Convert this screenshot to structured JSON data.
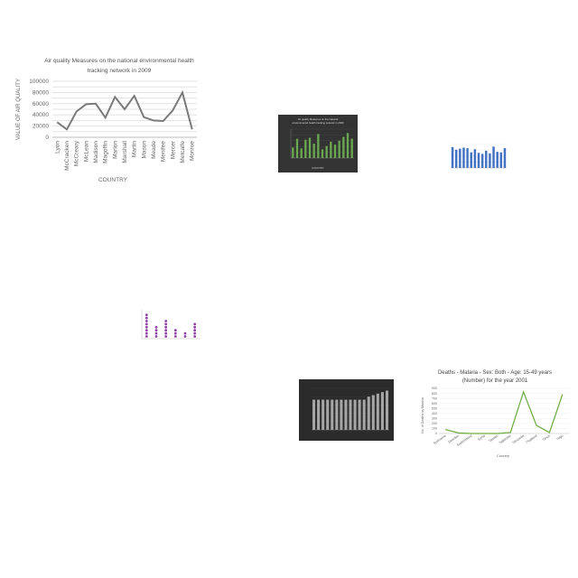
{
  "chart_data": [
    {
      "type": "line",
      "title_lines": [
        "Air quality Measures on the national environmental health",
        "tracking network in 2009"
      ],
      "xlabel": "COUNTRY",
      "ylabel": "VALUE OF AIR QUALITY",
      "ylim": [
        0,
        100000
      ],
      "yticks": [
        "100000",
        "80000",
        "60000",
        "40000",
        "20000",
        "0"
      ],
      "categories": [
        "Lyon",
        "McCracken",
        "McCreary",
        "McLean",
        "Madison",
        "Magoffin",
        "Marion",
        "Marshall",
        "Martin",
        "Mason",
        "Meade",
        "Menifee",
        "Mercer",
        "Metcalfe",
        "Monroe"
      ],
      "values": [
        27000,
        14000,
        46000,
        59000,
        60000,
        35000,
        72000,
        50000,
        74000,
        36000,
        30000,
        29000,
        48000,
        80000,
        14000
      ],
      "colors": {
        "line": "#7a7a7a"
      }
    },
    {
      "type": "bar",
      "title_lines": [
        "Air quality Measures on the national",
        "environmental health tracking network in 2009"
      ],
      "xlabel": "COUNTRY",
      "values": [
        22000,
        40000,
        20000,
        38000,
        42000,
        30000,
        50000,
        18000,
        25000,
        34000,
        28000,
        36000,
        44000,
        52000,
        40000
      ],
      "colors": {
        "background": "#333333",
        "bar": "#6aa84f"
      }
    },
    {
      "type": "bar",
      "values": [
        80,
        70,
        74,
        78,
        76,
        60,
        72,
        58,
        54,
        66,
        56,
        82,
        62,
        60,
        76
      ],
      "colors": {
        "bar": "#4472c4"
      }
    },
    {
      "type": "scatter",
      "series": [
        {
          "stack_counts": [
            8,
            4,
            6,
            3,
            2,
            5
          ]
        }
      ],
      "colors": {
        "marker": "#8e3fa3"
      }
    },
    {
      "type": "bar",
      "values": [
        4000,
        4000,
        4000,
        4000,
        4000,
        4000,
        4000,
        4000,
        4000,
        4000,
        4000,
        4000,
        4400,
        4600,
        4800,
        5000,
        5200
      ],
      "colors": {
        "background": "#2b2b2b",
        "bar": "#a6a6a6"
      }
    },
    {
      "type": "line",
      "title_lines": [
        "Deaths - Malaria - Sex: Both - Age: 15-49 years",
        "(Number) for the year 2001"
      ],
      "xlabel": "Country",
      "ylabel": "No. of Deaths by Malaria",
      "ylim": [
        0,
        900
      ],
      "yticks": [
        "900",
        "800",
        "700",
        "600",
        "500",
        "400",
        "300",
        "200",
        "100",
        "0"
      ],
      "categories": [
        "Suriname",
        "Sweden",
        "Switzerland",
        "Syria",
        "Taiwan",
        "Tajikistan",
        "Tanzania",
        "Thailand",
        "Timor",
        "Togo"
      ],
      "values": [
        80,
        10,
        0,
        0,
        0,
        20,
        830,
        160,
        20,
        780
      ],
      "colors": {
        "line": "#70ad47"
      }
    }
  ]
}
